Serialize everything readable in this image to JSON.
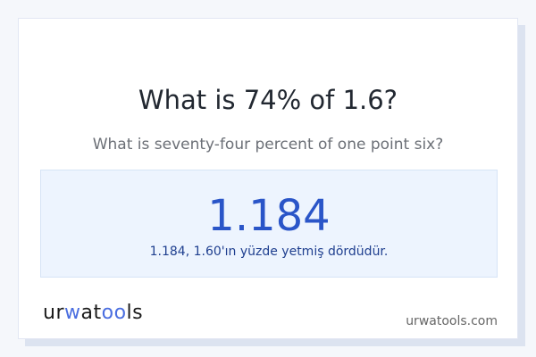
{
  "title": "What is 74% of 1.6?",
  "subtitle": "What is seventy-four percent of one point six?",
  "result": {
    "value": "1.184",
    "explanation": "1.184, 1.60'ın yüzde yetmiş dördüdür."
  },
  "brand": {
    "logo": "urwatools",
    "domain": "urwatools.com",
    "accent": "#4a6ee0"
  }
}
